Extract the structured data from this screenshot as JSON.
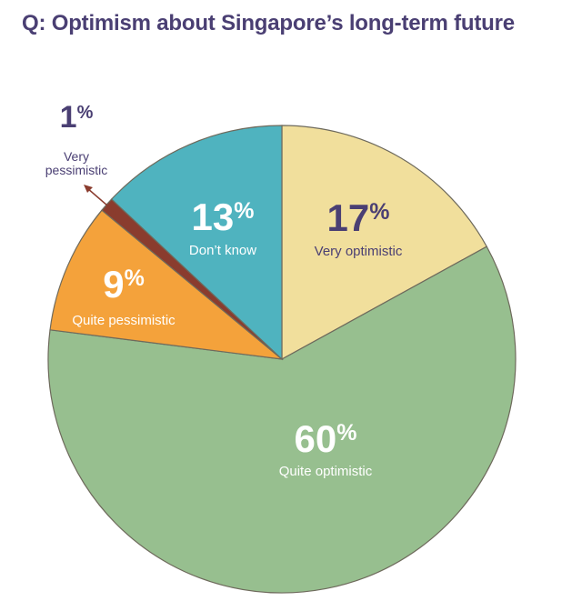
{
  "title": "Q: Optimism about Singapore’s long-term future",
  "chart_data": {
    "type": "pie",
    "title": "Q: Optimism about Singapore’s long-term future",
    "unit": "%",
    "slices": [
      {
        "label": "Very optimistic",
        "value": 17,
        "display": "17",
        "color": "#f1df9c",
        "text_color": "#4a3f73"
      },
      {
        "label": "Quite optimistic",
        "value": 60,
        "display": "60",
        "color": "#97bf8f",
        "text_color": "#ffffff"
      },
      {
        "label": "Quite pessimistic",
        "value": 9,
        "display": "9",
        "color": "#f4a23b",
        "text_color": "#ffffff"
      },
      {
        "label": "Very pessimistic",
        "value": 1,
        "display": "1",
        "color": "#8a3c2e",
        "text_color": "#4a3f73"
      },
      {
        "label": "Don’t know",
        "value": 13,
        "display": "13",
        "color": "#4fb3bf",
        "text_color": "#ffffff"
      }
    ]
  }
}
